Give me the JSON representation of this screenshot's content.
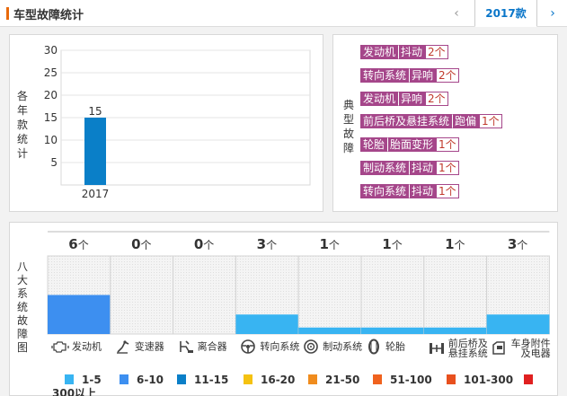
{
  "header": {
    "title": "车型故障统计",
    "prev_icon": "‹",
    "year_tab": "2017款",
    "next_icon": "›"
  },
  "left": {
    "vlabel": [
      "各",
      "年",
      "款",
      "统",
      "计"
    ],
    "chart_data": {
      "type": "bar",
      "categories": [
        "2017"
      ],
      "values": [
        15
      ],
      "ylim": [
        0,
        30
      ],
      "yticks": [
        5,
        10,
        15,
        20,
        25,
        30
      ],
      "title": "",
      "xlabel": "",
      "ylabel": "各年款统计",
      "bar_color": "#0a7fc8",
      "grid": true
    }
  },
  "right": {
    "vlabel": [
      "典",
      "型",
      "故",
      "障"
    ],
    "faults": [
      {
        "system": "发动机",
        "symptom": "抖动",
        "count": "2个"
      },
      {
        "system": "转向系统",
        "symptom": "异响",
        "count": "2个"
      },
      {
        "system": "发动机",
        "symptom": "异响",
        "count": "2个"
      },
      {
        "system": "前后桥及悬挂系统",
        "symptom": "跑偏",
        "count": "1个"
      },
      {
        "system": "轮胎",
        "symptom": "胎面变形",
        "count": "1个"
      },
      {
        "system": "制动系统",
        "symptom": "抖动",
        "count": "1个"
      },
      {
        "system": "转向系统",
        "symptom": "抖动",
        "count": "1个"
      }
    ]
  },
  "bottom": {
    "vlabel": [
      "八",
      "大",
      "系",
      "统",
      "故",
      "障",
      "图"
    ],
    "unit": "个",
    "chart_data": {
      "type": "bar",
      "categories": [
        "发动机",
        "变速器",
        "离合器",
        "转向系统",
        "制动系统",
        "轮胎",
        "前后桥及悬挂系统",
        "车身附件及电器"
      ],
      "values": [
        6,
        0,
        0,
        3,
        1,
        1,
        1,
        3
      ],
      "title": "",
      "xlabel": "",
      "ylabel": "八大系统故障图",
      "bar_colors": [
        "#3d8ff0",
        "#3d8ff0",
        "#3d8ff0",
        "#38b4f2",
        "#38b4f2",
        "#38b4f2",
        "#38b4f2",
        "#38b4f2"
      ]
    },
    "categories": [
      {
        "label": "发动机",
        "icon": "engine-icon"
      },
      {
        "label": "变速器",
        "icon": "gearbox-icon"
      },
      {
        "label": "离合器",
        "icon": "clutch-icon"
      },
      {
        "label": "转向系统",
        "icon": "steering-wheel-icon"
      },
      {
        "label": "制动系统",
        "icon": "brake-disc-icon"
      },
      {
        "label": "轮胎",
        "icon": "tire-icon"
      },
      {
        "label": "前后桥及悬挂系统",
        "label_lines": [
          "前后桥及",
          "悬挂系统"
        ],
        "icon": "axle-icon"
      },
      {
        "label": "车身附件及电器",
        "label_lines": [
          "车身附件",
          "及电器"
        ],
        "icon": "car-body-icon"
      }
    ],
    "legend": [
      {
        "label": "1-5",
        "color": "#38b4f2"
      },
      {
        "label": "6-10",
        "color": "#3d8ff0"
      },
      {
        "label": "11-15",
        "color": "#0a7fc8"
      },
      {
        "label": "16-20",
        "color": "#f5c211"
      },
      {
        "label": "21-50",
        "color": "#f08c1e"
      },
      {
        "label": "51-100",
        "color": "#f0621e"
      },
      {
        "label": "101-300",
        "color": "#e8501e"
      },
      {
        "label": "300以上",
        "color": "#e02020"
      }
    ]
  }
}
